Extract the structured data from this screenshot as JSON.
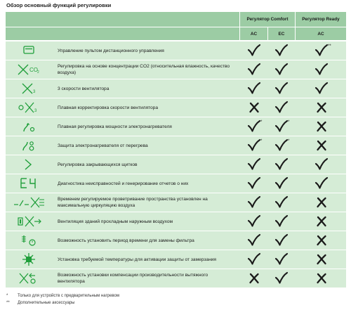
{
  "title": "Обзор основный функций регулировки",
  "header": {
    "group_comfort": "Регулятор Comfort",
    "group_ready": "Регулятор Ready",
    "col_ac_1": "AC",
    "col_ec": "EC",
    "col_ac_2": "AC"
  },
  "colors": {
    "header_bg": "#9ccca4",
    "row_bg": "#d5ecd6",
    "icon_green": "#1f9e3a"
  },
  "rows": [
    {
      "icon": "remote-control-icon",
      "text": "Управление пультом дистанционного управления",
      "comfort_ac": "check",
      "comfort_ec": "check",
      "ready_ac": "check",
      "comfort_ac_note": "",
      "comfort_ec_note": "",
      "ready_ac_note": "**"
    },
    {
      "icon": "co2-sensor-icon",
      "text": "Регулировка на основе концентрации CO2 (относительная влажность, качество воздуха)",
      "comfort_ac": "check",
      "comfort_ec": "check",
      "ready_ac": "check",
      "comfort_ac_note": "",
      "comfort_ec_note": "",
      "ready_ac_note": ""
    },
    {
      "icon": "fan-3-speed-icon",
      "text": "3 скорости вентилятора",
      "comfort_ac": "check",
      "comfort_ec": "check",
      "ready_ac": "check",
      "comfort_ac_note": "",
      "comfort_ec_note": "",
      "ready_ac_note": ""
    },
    {
      "icon": "fan-smooth-speed-icon",
      "text": "Плавная корректировка скорости вентилятора",
      "comfort_ac": "cross",
      "comfort_ec": "check",
      "ready_ac": "cross",
      "comfort_ac_note": "",
      "comfort_ec_note": "",
      "ready_ac_note": ""
    },
    {
      "icon": "heater-power-icon",
      "text": "Плавная регулировка мощности электронагревателя",
      "comfort_ac": "check",
      "comfort_ec": "check",
      "ready_ac": "cross",
      "comfort_ac_note": "*",
      "comfort_ec_note": "*",
      "ready_ac_note": ""
    },
    {
      "icon": "heater-overheat-icon",
      "text": "Защита электронагревателя от перегрева",
      "comfort_ac": "check",
      "comfort_ec": "check",
      "ready_ac": "cross",
      "comfort_ac_note": "*",
      "comfort_ec_note": "*",
      "ready_ac_note": ""
    },
    {
      "icon": "damper-icon",
      "text": "Регулировка закрывающихся щитков",
      "comfort_ac": "check",
      "comfort_ec": "check",
      "ready_ac": "check",
      "comfort_ac_note": "",
      "comfort_ec_note": "",
      "ready_ac_note": ""
    },
    {
      "icon": "diagnostics-icon",
      "text": "Диагностика неисправностей и генерирование отчетов о них",
      "comfort_ac": "check",
      "comfort_ec": "check",
      "ready_ac": "check",
      "comfort_ac_note": "",
      "comfort_ec_note": "",
      "ready_ac_note": ""
    },
    {
      "icon": "timed-ventilation-icon",
      "text": "Временем регулируемое проветривание пространства установлен на максимальную циркуляцию воздуха",
      "comfort_ac": "check",
      "comfort_ec": "check",
      "ready_ac": "cross",
      "comfort_ac_note": "",
      "comfort_ec_note": "",
      "ready_ac_note": ""
    },
    {
      "icon": "cool-air-ventilation-icon",
      "text": "Вентиляция зданий прохладным наружным воздухом",
      "comfort_ac": "check",
      "comfort_ec": "check",
      "ready_ac": "cross",
      "comfort_ac_note": "",
      "comfort_ec_note": "",
      "ready_ac_note": ""
    },
    {
      "icon": "filter-timer-icon",
      "text": "Возможность установить период времени для замены фильтра",
      "comfort_ac": "check",
      "comfort_ec": "check",
      "ready_ac": "cross",
      "comfort_ac_note": "",
      "comfort_ec_note": "",
      "ready_ac_note": ""
    },
    {
      "icon": "frost-protection-icon",
      "text": "Установка требуемой температуры для активации защиты от замерзания",
      "comfort_ac": "check",
      "comfort_ec": "check",
      "ready_ac": "cross",
      "comfort_ac_note": "",
      "comfort_ec_note": "",
      "ready_ac_note": ""
    },
    {
      "icon": "exhaust-fan-compensation-icon",
      "text": "Возможность установки компенсации производительности вытяжного вентилятора",
      "comfort_ac": "cross",
      "comfort_ec": "check",
      "ready_ac": "cross",
      "comfort_ac_note": "",
      "comfort_ec_note": "",
      "ready_ac_note": ""
    }
  ],
  "footnotes": [
    {
      "symbol": "*",
      "text": "Только для устройств с предварительным нагревом"
    },
    {
      "symbol": "**",
      "text": "Дополнительные аксессуары"
    }
  ]
}
